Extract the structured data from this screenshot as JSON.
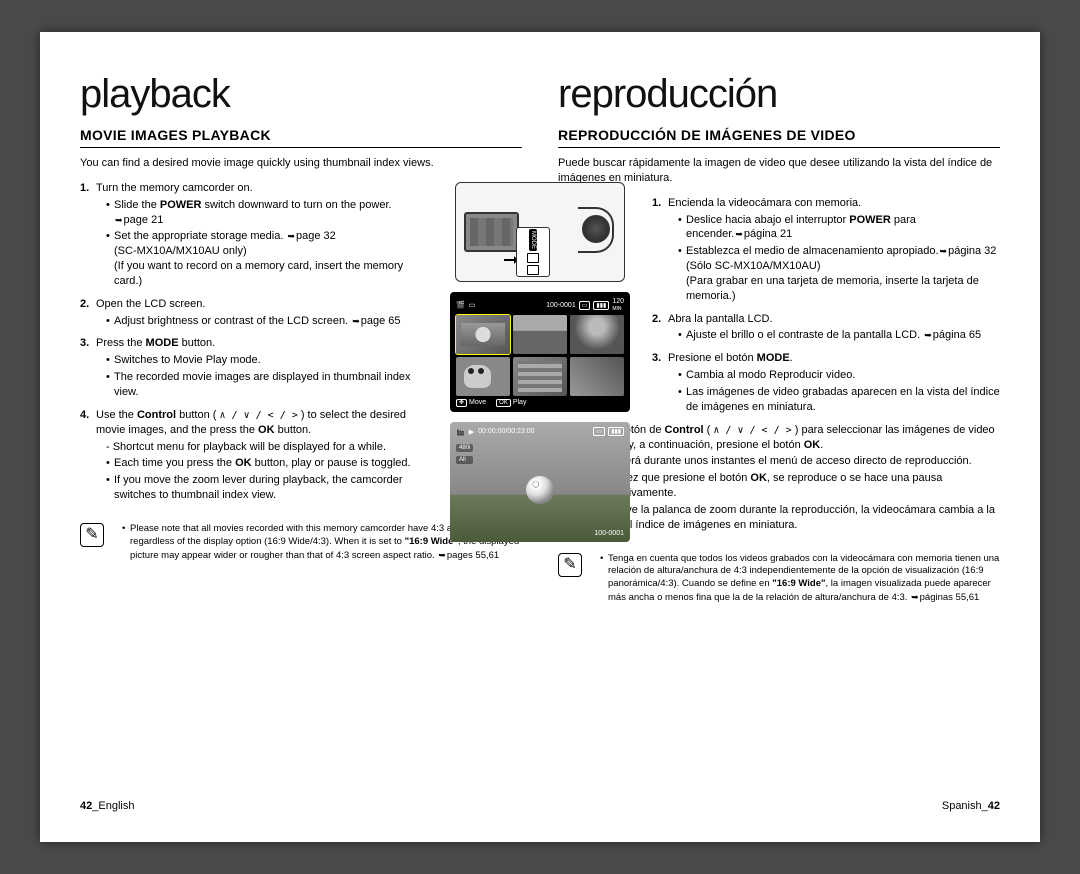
{
  "left": {
    "title": "playback",
    "section": "MOVIE IMAGES PLAYBACK",
    "intro": "You can find a desired movie image quickly using thumbnail index views.",
    "step1": "Turn the memory camcorder on.",
    "step1_b1a": "Slide the ",
    "step1_b1_bold": "POWER",
    "step1_b1b": " switch downward to turn on the power. ",
    "step1_b1_page": "page 21",
    "step1_b2a": "Set the appropriate storage media. ",
    "step1_b2_page": "page 32",
    "step1_b2b": "(SC-MX10A/MX10AU only)",
    "step1_b2c": "(If you want to record on a memory card, insert the memory card.)",
    "step2": "Open the LCD screen.",
    "step2_b1a": "Adjust brightness or contrast of the LCD screen. ",
    "step2_b1_page": "page 65",
    "step3a": "Press the ",
    "step3_bold": "MODE",
    "step3b": " button.",
    "step3_b1": "Switches to Movie Play mode.",
    "step3_b2": "The recorded movie images are displayed in thumbnail index view.",
    "step4a": "Use the ",
    "step4_bold1": "Control",
    "step4b": " button ( ",
    "step4_icons": "∧ / ∨ / < / >",
    "step4c": " ) to select the desired movie images, and the press the ",
    "step4_bold2": "OK",
    "step4d": " button.",
    "step4_sub": "- Shortcut menu for playback will be displayed for a while.",
    "step4_b1a": "Each time you press the ",
    "step4_b1_bold": "OK",
    "step4_b1b": " button, play or pause is toggled.",
    "step4_b2": "If you move the zoom lever during playback, the camcorder switches to thumbnail index view.",
    "note": "Please note that all movies recorded with this memory camcorder have 4:3 aspect ratio regardless of the display option (16:9 Wide/4:3). When it is set to ",
    "note_bold": "\"16:9 Wide\"",
    "note2": ", the displayed picture may appear wider or rougher than that of 4:3 screen aspect ratio. ",
    "note_page": "pages 55,61",
    "footer_page": "42",
    "footer_lang": "English"
  },
  "right": {
    "title": "reproducción",
    "section": "REPRODUCCIÓN DE IMÁGENES DE VIDEO",
    "intro": "Puede buscar rápidamente la imagen de video que desee utilizando la vista del índice de imágenes en miniatura.",
    "step1": "Encienda la videocámara con memoria.",
    "step1_b1a": "Deslice hacia abajo el interruptor ",
    "step1_b1_bold": "POWER",
    "step1_b1b": " para encender.",
    "step1_b1_page": "página 21",
    "step1_b2a": "Establezca el medio de almacenamiento apropiado.",
    "step1_b2_page": "página 32",
    "step1_b2b": "(Sólo SC-MX10A/MX10AU)",
    "step1_b2c": "(Para grabar en una tarjeta de memoria, inserte la tarjeta de memoria.)",
    "step2": "Abra la pantalla LCD.",
    "step2_b1a": "Ajuste el brillo o el contraste de la pantalla LCD. ",
    "step2_b1_page": "página 65",
    "step3a": "Presione el botón ",
    "step3_bold": "MODE",
    "step3b": ".",
    "step3_b1": "Cambia al modo Reproducir video.",
    "step3_b2": "Las imágenes de video grabadas aparecen en la vista del índice de imágenes en miniatura.",
    "step4a": "Utilice el botón de ",
    "step4_bold1": "Control",
    "step4b": " ( ",
    "step4_icons": "∧ / ∨ / < / >",
    "step4c": " ) para seleccionar las imágenes de video que desee y, a continuación, presione el botón ",
    "step4_bold2": "OK",
    "step4d": ".",
    "step4_sub": "- Aparecerá durante unos instantes el menú de acceso directo de reproducción.",
    "step4_b1a": "Cada vez que presione el botón ",
    "step4_b1_bold": "OK",
    "step4_b1b": ", se reproduce o se hace una pausa alternativamente.",
    "step4_b2": "Si mueve la palanca de zoom durante la reproducción, la videocámara cambia a la vista del índice de imágenes en miniatura.",
    "note": "Tenga en cuenta que todos los videos grabados con la videocámara con memoria tienen una relación de altura/anchura de 4:3 independientemente de la opción de visualización (16:9 panorámica/4:3). Cuando se define en ",
    "note_bold": "\"16:9 Wide\"",
    "note2": ", la imagen visualizada puede aparecer más ancha o menos fina que la de la relación de altura/anchura de 4:3. ",
    "note_page": "páginas 55,61",
    "footer_page": "42",
    "footer_lang": "Spanish"
  },
  "lcd": {
    "file_id": "100-0001",
    "min": "120",
    "min_label": "MIN",
    "move": "Move",
    "play": "Play",
    "time": "00:00:00/00:23:00",
    "res": "480i",
    "all": "All",
    "mode_label": "MODE"
  }
}
